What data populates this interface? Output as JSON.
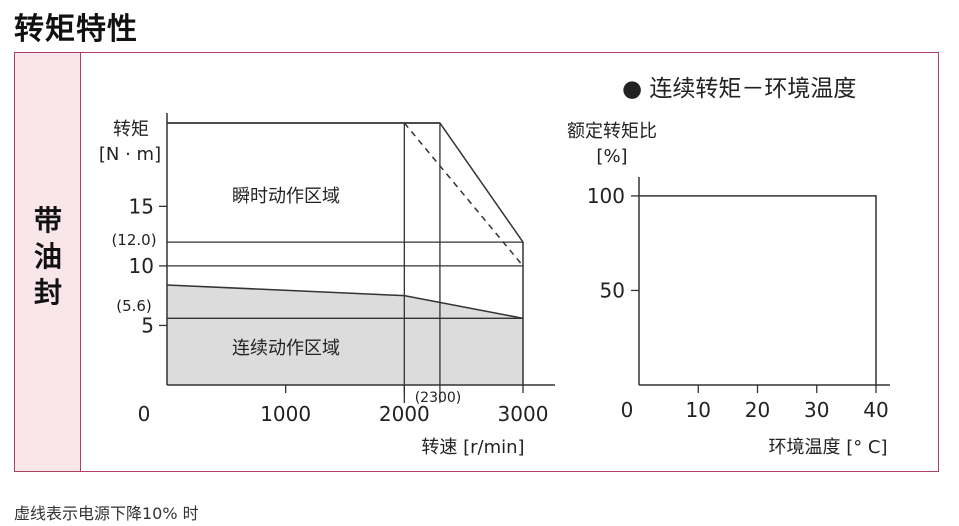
{
  "page": {
    "title": "转矩特性",
    "side_label": "带\n油\n封",
    "footnote": "虚线表示电源下降10% 时"
  },
  "chart_data": [
    {
      "type": "area",
      "ylabel_line1": "转矩",
      "ylabel_line2": "[N · m]",
      "xlabel": "转速 [r/min]",
      "x_ticks": [
        0,
        1000,
        2000,
        3000
      ],
      "y_ticks": [
        5,
        10,
        15
      ],
      "xlim": [
        0,
        3000
      ],
      "ylim": [
        0,
        22
      ],
      "annotations": {
        "y_12": "(12.0)",
        "y_5_6": "(5.6)",
        "x_2300": "(2300)",
        "instant_region": "瞬时动作区域",
        "continuous_region": "连续动作区域"
      },
      "instant_boundary": {
        "x": [
          0,
          2300,
          3000,
          3000
        ],
        "y": [
          22,
          22,
          12,
          0
        ]
      },
      "instant_boundary_dashed": {
        "x": [
          2000,
          3000
        ],
        "y": [
          22,
          10
        ]
      },
      "continuous_boundary": {
        "x": [
          0,
          2000,
          3000
        ],
        "y": [
          8.4,
          7.5,
          5.6
        ]
      },
      "ref_lines_y": [
        12,
        10,
        5.6
      ],
      "ref_lines_x": [
        2000,
        2300
      ]
    },
    {
      "type": "line",
      "title": "● 连续转矩－环境温度",
      "ylabel_line1": "额定转矩比",
      "ylabel_line2": "[%]",
      "xlabel": "环境温度 [° C]",
      "x_ticks": [
        0,
        10,
        20,
        30,
        40
      ],
      "y_ticks": [
        50,
        100
      ],
      "xlim": [
        0,
        40
      ],
      "ylim": [
        0,
        110
      ],
      "series": [
        {
          "x": [
            0,
            40,
            40
          ],
          "y": [
            100,
            100,
            0
          ]
        }
      ]
    }
  ]
}
